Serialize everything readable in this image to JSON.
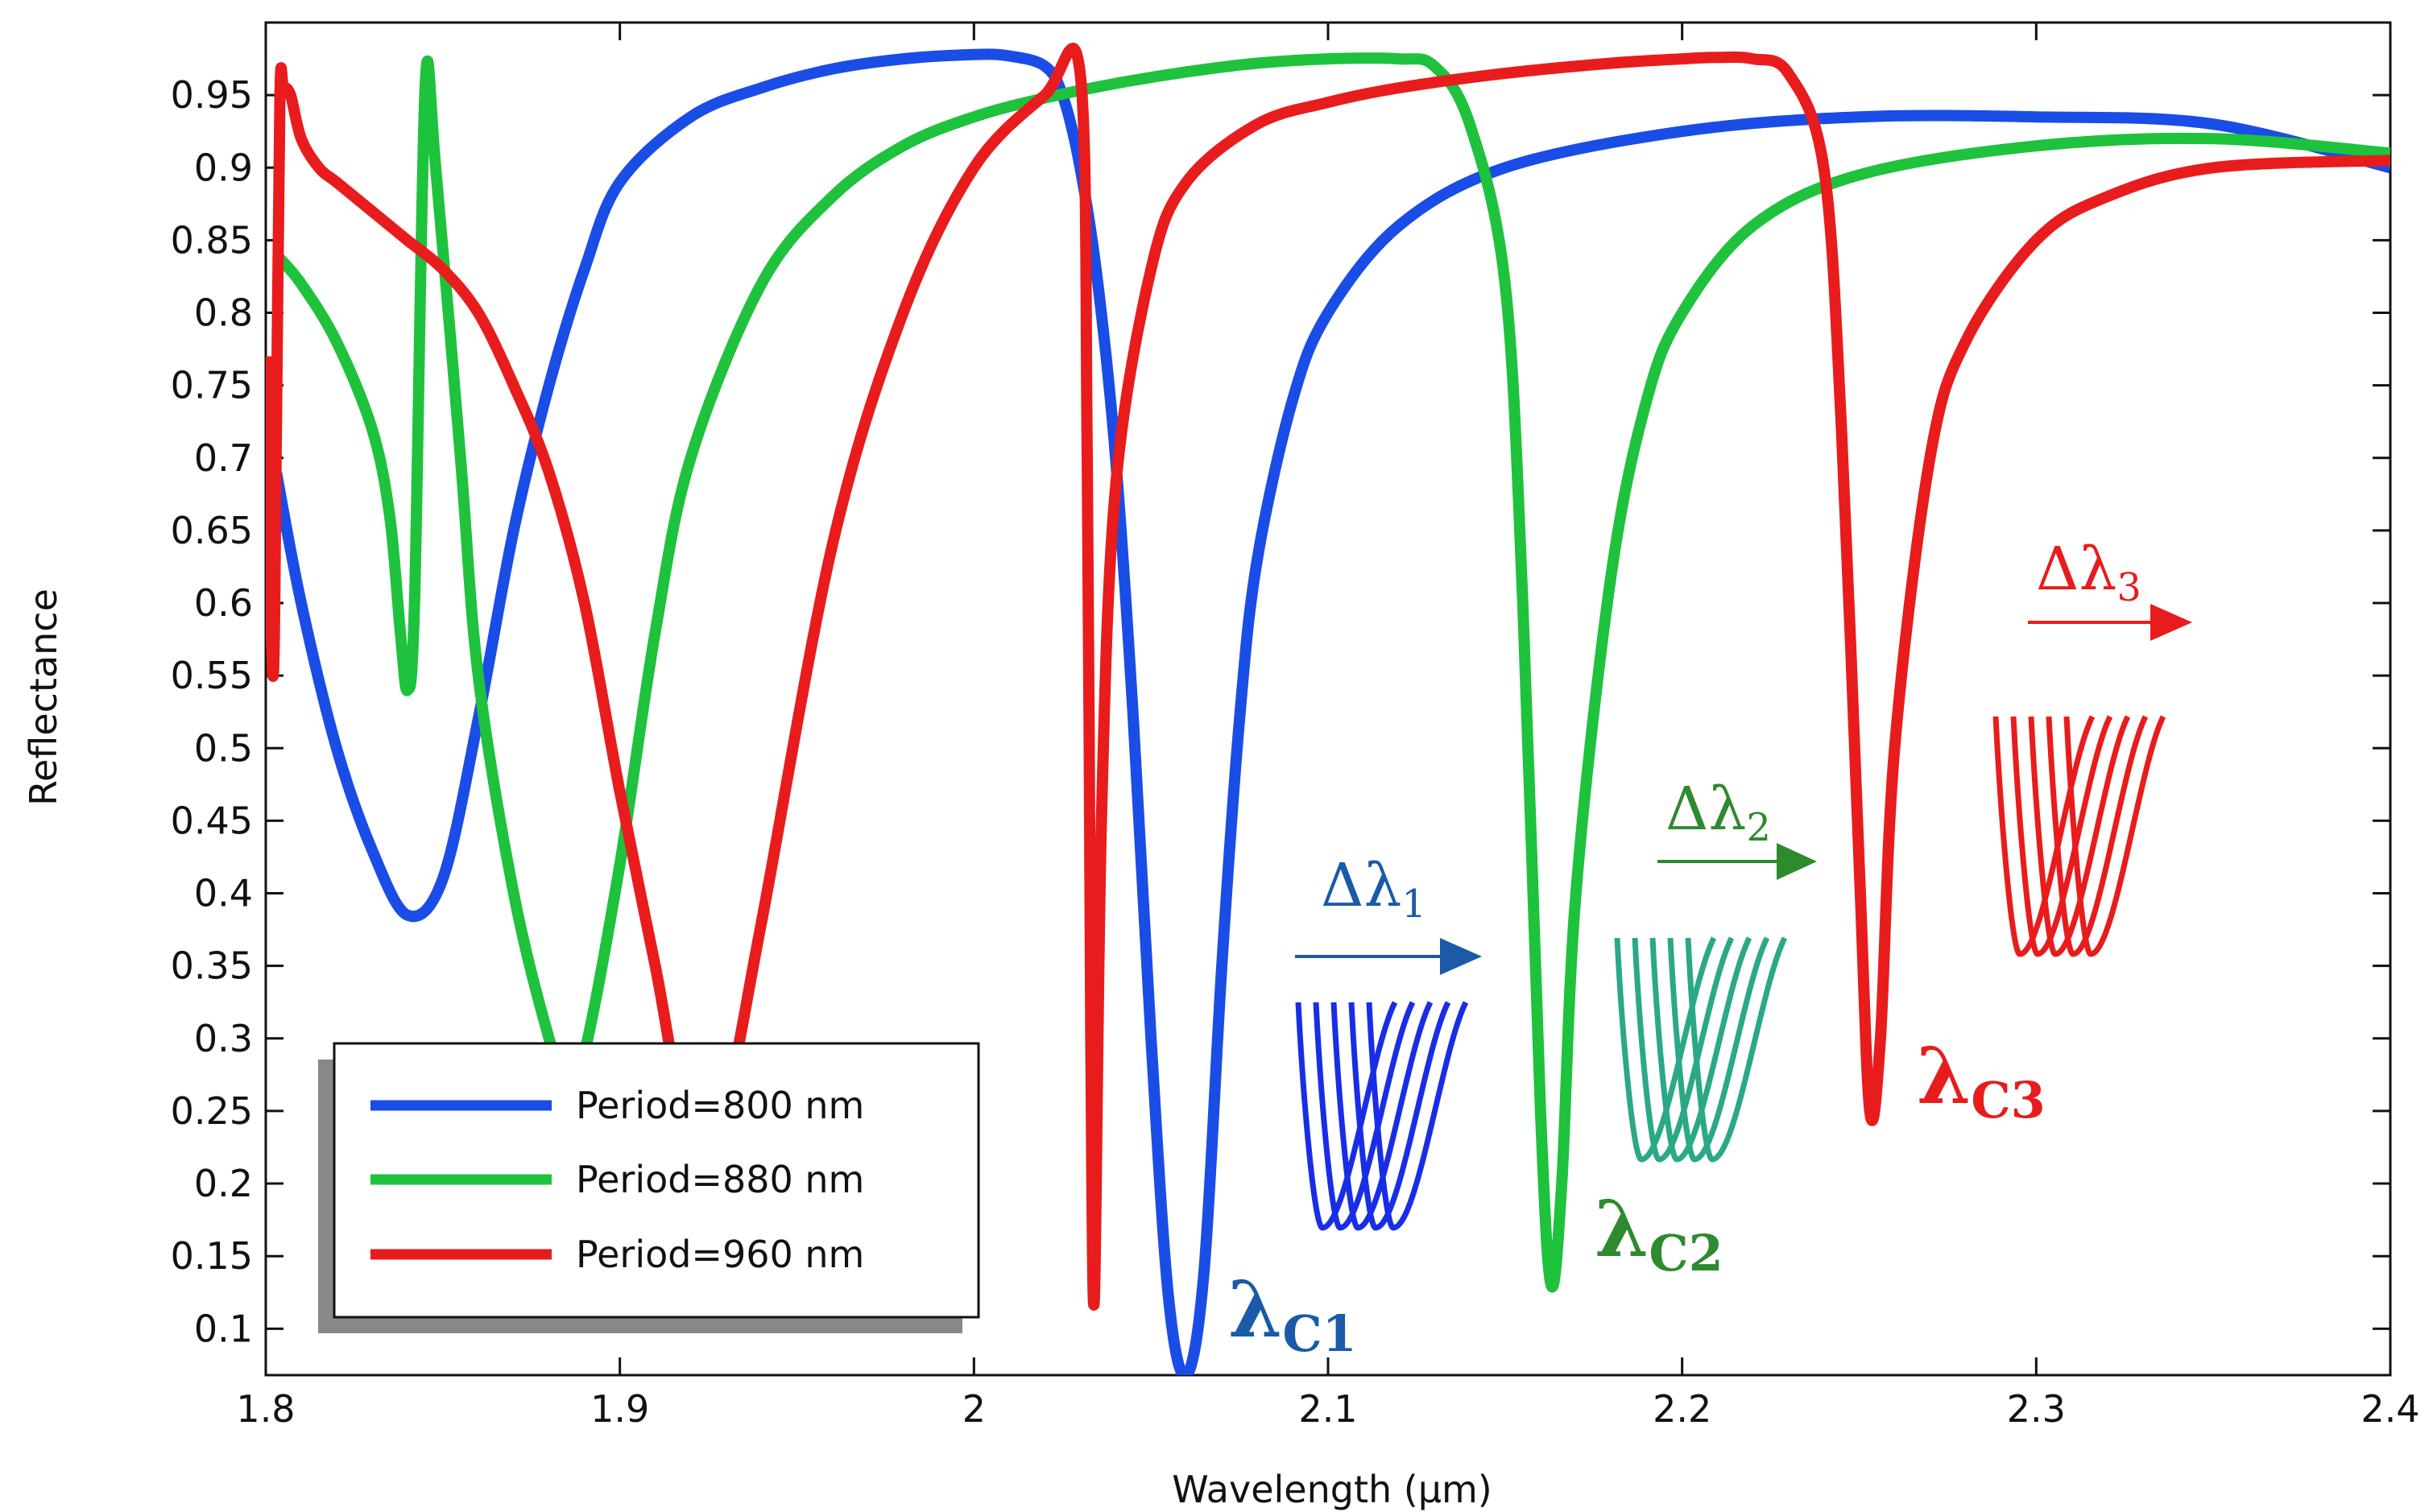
{
  "chart_data": {
    "type": "line",
    "xlabel": "Wavelength (µm)",
    "ylabel": "Reflectance",
    "xlim": [
      1.8,
      2.4
    ],
    "ylim": [
      0.068,
      1.0
    ],
    "x_ticks": [
      "1.8",
      "1.9",
      "2",
      "2.1",
      "2.2",
      "2.3",
      "2.4"
    ],
    "x_tick_values": [
      1.8,
      1.9,
      2.0,
      2.1,
      2.2,
      2.3,
      2.4
    ],
    "y_ticks": [
      "0.1",
      "0.15",
      "0.2",
      "0.25",
      "0.3",
      "0.35",
      "0.4",
      "0.45",
      "0.5",
      "0.55",
      "0.6",
      "0.65",
      "0.7",
      "0.75",
      "0.8",
      "0.85",
      "0.9",
      "0.95"
    ],
    "y_tick_values": [
      0.1,
      0.15,
      0.2,
      0.25,
      0.3,
      0.35,
      0.4,
      0.45,
      0.5,
      0.55,
      0.6,
      0.65,
      0.7,
      0.75,
      0.8,
      0.85,
      0.9,
      0.95
    ],
    "legend_position": "bottom-left",
    "grid": false,
    "series": [
      {
        "name": "Period=800 nm",
        "color": "#1a4de6",
        "x": [
          1.803,
          1.81,
          1.82,
          1.83,
          1.84,
          1.85,
          1.86,
          1.87,
          1.88,
          1.89,
          1.9,
          1.92,
          1.94,
          1.96,
          1.98,
          2.0,
          2.01,
          2.02,
          2.025,
          2.03,
          2.035,
          2.04,
          2.045,
          2.05,
          2.055,
          2.06,
          2.065,
          2.07,
          2.075,
          2.08,
          2.09,
          2.1,
          2.12,
          2.15,
          2.2,
          2.25,
          2.3,
          2.35,
          2.4
        ],
        "y": [
          0.69,
          0.6,
          0.5,
          0.43,
          0.385,
          0.41,
          0.52,
          0.65,
          0.75,
          0.83,
          0.89,
          0.935,
          0.955,
          0.968,
          0.975,
          0.978,
          0.977,
          0.97,
          0.95,
          0.9,
          0.82,
          0.7,
          0.52,
          0.3,
          0.12,
          0.068,
          0.14,
          0.35,
          0.52,
          0.63,
          0.74,
          0.8,
          0.86,
          0.9,
          0.925,
          0.935,
          0.935,
          0.93,
          0.9
        ]
      },
      {
        "name": "Period=880 nm",
        "color": "#1ec23c",
        "x": [
          1.803,
          1.81,
          1.82,
          1.83,
          1.835,
          1.838,
          1.84,
          1.842,
          1.845,
          1.848,
          1.855,
          1.86,
          1.87,
          1.88,
          1.885,
          1.89,
          1.9,
          1.91,
          1.92,
          1.94,
          1.96,
          1.98,
          2.0,
          2.02,
          2.04,
          2.06,
          2.08,
          2.1,
          2.12,
          2.13,
          2.14,
          2.15,
          2.155,
          2.16,
          2.163,
          2.166,
          2.17,
          2.18,
          2.19,
          2.2,
          2.22,
          2.25,
          2.3,
          2.35,
          2.4
        ],
        "y": [
          0.84,
          0.82,
          0.78,
          0.72,
          0.66,
          0.58,
          0.54,
          0.6,
          0.955,
          0.9,
          0.7,
          0.55,
          0.4,
          0.3,
          0.27,
          0.29,
          0.42,
          0.58,
          0.7,
          0.82,
          0.88,
          0.915,
          0.935,
          0.948,
          0.958,
          0.966,
          0.972,
          0.975,
          0.975,
          0.97,
          0.93,
          0.82,
          0.6,
          0.25,
          0.13,
          0.2,
          0.4,
          0.62,
          0.74,
          0.8,
          0.86,
          0.895,
          0.915,
          0.92,
          0.91
        ]
      },
      {
        "name": "Period=960 nm",
        "color": "#e81c1c",
        "x": [
          1.8,
          1.802,
          1.803,
          1.804,
          1.805,
          1.807,
          1.81,
          1.815,
          1.82,
          1.83,
          1.84,
          1.85,
          1.86,
          1.87,
          1.88,
          1.89,
          1.9,
          1.91,
          1.92,
          1.93,
          1.94,
          1.96,
          1.98,
          2.0,
          2.02,
          2.03,
          2.032,
          2.033,
          2.034,
          2.036,
          2.04,
          2.05,
          2.06,
          2.08,
          2.1,
          2.12,
          2.15,
          2.18,
          2.2,
          2.21,
          2.22,
          2.23,
          2.24,
          2.245,
          2.25,
          2.253,
          2.256,
          2.26,
          2.27,
          2.28,
          2.3,
          2.32,
          2.35,
          2.4
        ],
        "y": [
          0.77,
          0.55,
          0.72,
          0.95,
          0.955,
          0.95,
          0.92,
          0.9,
          0.89,
          0.87,
          0.85,
          0.83,
          0.8,
          0.75,
          0.69,
          0.6,
          0.47,
          0.35,
          0.23,
          0.26,
          0.38,
          0.64,
          0.8,
          0.9,
          0.95,
          0.965,
          0.7,
          0.3,
          0.12,
          0.45,
          0.68,
          0.83,
          0.89,
          0.93,
          0.945,
          0.955,
          0.965,
          0.972,
          0.975,
          0.976,
          0.975,
          0.965,
          0.9,
          0.72,
          0.42,
          0.25,
          0.3,
          0.5,
          0.7,
          0.78,
          0.85,
          0.88,
          0.9,
          0.905
        ]
      }
    ],
    "annotations": [
      {
        "label": "λ",
        "subscript": "C1",
        "color": "#1a5aa8"
      },
      {
        "label": "λ",
        "subscript": "C2",
        "color": "#2e8a2e"
      },
      {
        "label": "λ",
        "subscript": "C3",
        "color": "#e81c1c"
      },
      {
        "label": "Δλ",
        "subscript": "1",
        "color": "#1a5aa8"
      },
      {
        "label": "Δλ",
        "subscript": "2",
        "color": "#2e8a2e"
      },
      {
        "label": "Δλ",
        "subscript": "3",
        "color": "#e81c1c"
      }
    ],
    "inset_colors": [
      "#1a2de6",
      "#2aa887",
      "#e81c1c"
    ]
  }
}
